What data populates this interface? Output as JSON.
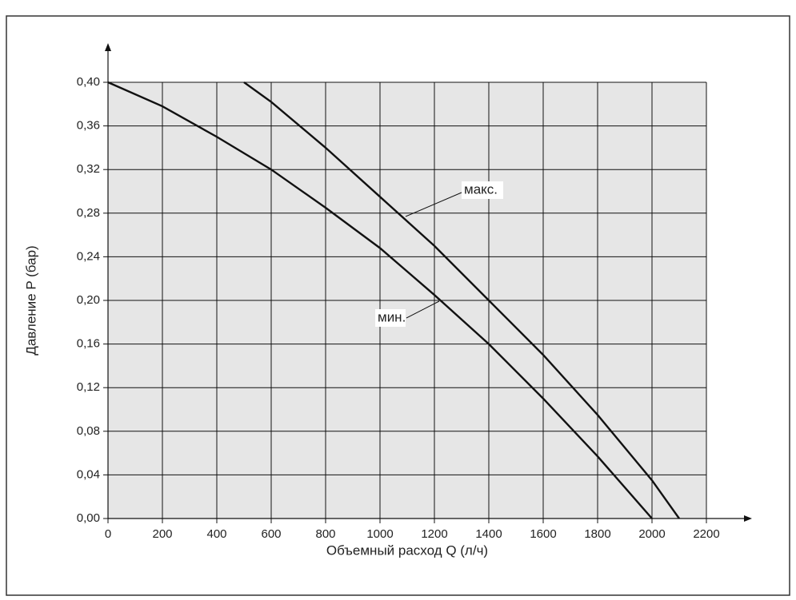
{
  "chart_data": {
    "type": "line",
    "xlabel": "Объемный расход Q (л/ч)",
    "ylabel": "Давление P (бар)",
    "xlim": [
      0,
      2200
    ],
    "xticks": [
      0,
      200,
      400,
      600,
      800,
      1000,
      1200,
      1400,
      1600,
      1800,
      2000,
      2200
    ],
    "ylim": [
      0,
      0.4
    ],
    "yticks": [
      {
        "value": 0,
        "label": "0,00"
      },
      {
        "value": 0.04,
        "label": "0,04"
      },
      {
        "value": 0.08,
        "label": "0,08"
      },
      {
        "value": 0.12,
        "label": "0,12"
      },
      {
        "value": 0.16,
        "label": "0,16"
      },
      {
        "value": 0.2,
        "label": "0,20"
      },
      {
        "value": 0.24,
        "label": "0,24"
      },
      {
        "value": 0.28,
        "label": "0,28"
      },
      {
        "value": 0.32,
        "label": "0,32"
      },
      {
        "value": 0.36,
        "label": "0,36"
      },
      {
        "value": 0.4,
        "label": "0,40"
      }
    ],
    "grid": true,
    "series": [
      {
        "name": "мин.",
        "color": "#111111",
        "x": [
          0,
          200,
          400,
          600,
          800,
          1000,
          1200,
          1400,
          1600,
          1800,
          2000
        ],
        "values": [
          0.4,
          0.378,
          0.35,
          0.32,
          0.285,
          0.248,
          0.205,
          0.16,
          0.11,
          0.057,
          0.0
        ]
      },
      {
        "name": "макс.",
        "color": "#111111",
        "x": [
          500,
          600,
          800,
          1000,
          1200,
          1400,
          1600,
          1800,
          2000,
          2100
        ],
        "values": [
          0.4,
          0.382,
          0.34,
          0.295,
          0.25,
          0.2,
          0.15,
          0.095,
          0.035,
          0.0
        ]
      }
    ]
  }
}
